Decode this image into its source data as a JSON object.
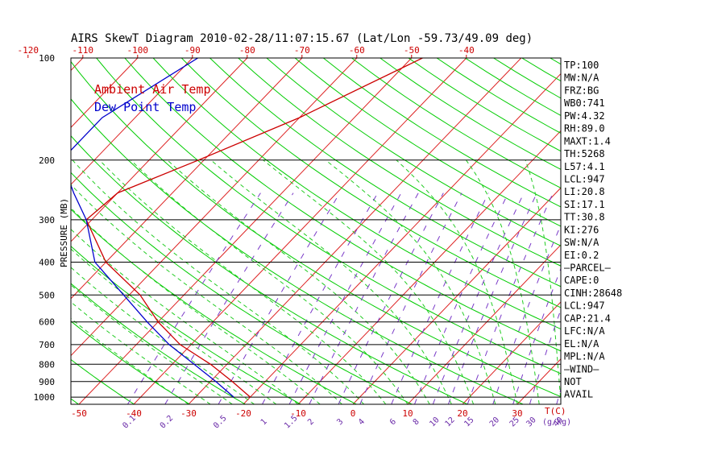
{
  "chart_data": {
    "type": "line",
    "title": "AIRS SkewT Diagram 2010-02-28/11:07:15.67 (Lat/Lon -59.73/49.09 deg)",
    "ylabel": "PRESSURE (MB)",
    "xlabel": "T(C)",
    "mixing_label": "(g/kg)",
    "top_temperature_ticks": [
      -120,
      -110,
      -100,
      -90,
      -80,
      -70,
      -60,
      -50,
      -40
    ],
    "bottom_temperature_ticks": [
      -50,
      -40,
      -30,
      -20,
      -10,
      0,
      10,
      20,
      30
    ],
    "bottom_temperature_tick_labels": [
      "-50",
      "-40",
      "-30",
      "-20",
      "-10",
      "0",
      "10",
      "20",
      "30"
    ],
    "pressure_ticks": [
      100,
      200,
      300,
      400,
      500,
      600,
      700,
      800,
      900,
      1000
    ],
    "mixing_ratio_ticks": [
      "0.1",
      "0.2",
      "0.5",
      "1",
      "1.5",
      "2",
      "3",
      "4",
      "6",
      "8",
      "10",
      "12",
      "15",
      "20",
      "25",
      "30",
      "40"
    ],
    "colors": {
      "temperature": "#cc0000",
      "dewpoint": "#0000cc",
      "isotherm": "#dd2222",
      "dry_adiabat": "#00cc00",
      "moist_adiabat": "#22cc22",
      "mixing_ratio": "#7a3ac8",
      "isobar": "#000000"
    },
    "series": [
      {
        "name": "Ambient Air Temp",
        "points": [
          {
            "p": 100,
            "t": -48
          },
          {
            "p": 150,
            "t": -60
          },
          {
            "p": 200,
            "t": -71
          },
          {
            "p": 250,
            "t": -80
          },
          {
            "p": 300,
            "t": -81
          },
          {
            "p": 400,
            "t": -70
          },
          {
            "p": 500,
            "t": -58
          },
          {
            "p": 600,
            "t": -50
          },
          {
            "p": 700,
            "t": -42
          },
          {
            "p": 800,
            "t": -33
          },
          {
            "p": 900,
            "t": -26
          },
          {
            "p": 1000,
            "t": -20
          }
        ]
      },
      {
        "name": "Dew Point Temp",
        "points": [
          {
            "p": 100,
            "t": -89
          },
          {
            "p": 150,
            "t": -96
          },
          {
            "p": 200,
            "t": -96
          },
          {
            "p": 250,
            "t": -88
          },
          {
            "p": 300,
            "t": -81
          },
          {
            "p": 400,
            "t": -72
          },
          {
            "p": 500,
            "t": -61
          },
          {
            "p": 600,
            "t": -52
          },
          {
            "p": 700,
            "t": -44
          },
          {
            "p": 800,
            "t": -36
          },
          {
            "p": 900,
            "t": -29
          },
          {
            "p": 1000,
            "t": -23
          }
        ]
      }
    ],
    "indices": [
      "TP:100",
      "MW:N/A",
      "FRZ:BG",
      "WB0:741",
      "PW:4.32",
      "RH:89.0",
      "MAXT:1.4",
      "TH:5268",
      "L57:4.1",
      "LCL:947",
      "LI:20.8",
      "SI:17.1",
      "TT:30.8",
      "KI:276",
      "SW:N/A",
      "EI:0.2",
      "—PARCEL—",
      "CAPE:0",
      "CINH:28648",
      "LCL:947",
      "CAP:21.4",
      "LFC:N/A",
      "EL:N/A",
      "MPL:N/A",
      "—WIND—",
      "NOT",
      "AVAIL"
    ]
  }
}
